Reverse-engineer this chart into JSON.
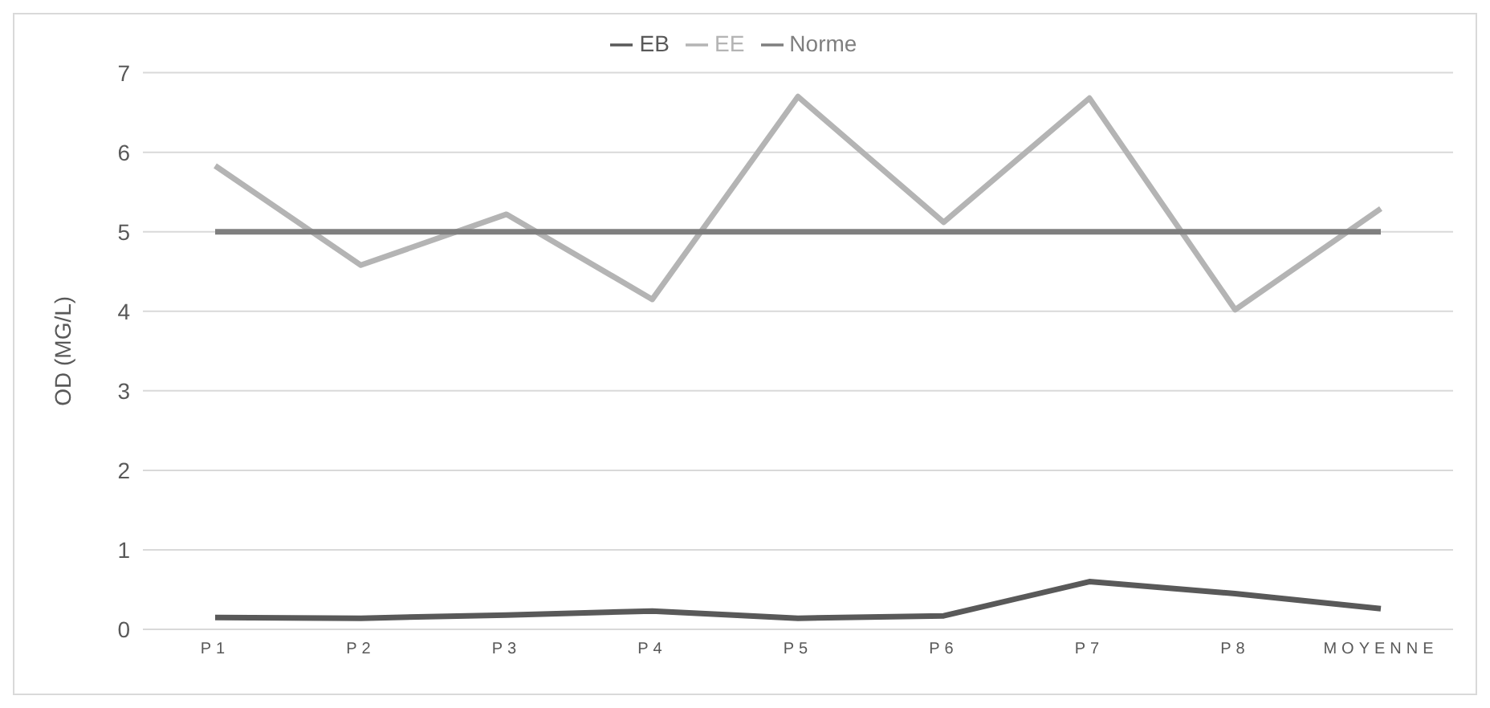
{
  "chart_data": {
    "type": "line",
    "ylabel": "OD (MG/L)",
    "categories": [
      "P1",
      "P2",
      "P3",
      "P4",
      "P5",
      "P6",
      "P7",
      "P8",
      "MOYENNE"
    ],
    "series": [
      {
        "name": "EB",
        "color": "#595959",
        "values": [
          0.15,
          0.14,
          0.18,
          0.23,
          0.14,
          0.17,
          0.6,
          0.45,
          0.26
        ]
      },
      {
        "name": "EE",
        "color": "#b4b4b4",
        "values": [
          5.83,
          4.58,
          5.22,
          4.15,
          6.7,
          5.12,
          6.68,
          4.02,
          5.29
        ]
      },
      {
        "name": "Norme",
        "color": "#7f7f7f",
        "values": [
          5,
          5,
          5,
          5,
          5,
          5,
          5,
          5,
          5
        ]
      }
    ],
    "ylim": [
      0,
      7
    ],
    "yticks": [
      0,
      1,
      2,
      3,
      4,
      5,
      6,
      7
    ],
    "grid": "y",
    "legend": "top",
    "marker": "none",
    "line_style": "solid"
  }
}
